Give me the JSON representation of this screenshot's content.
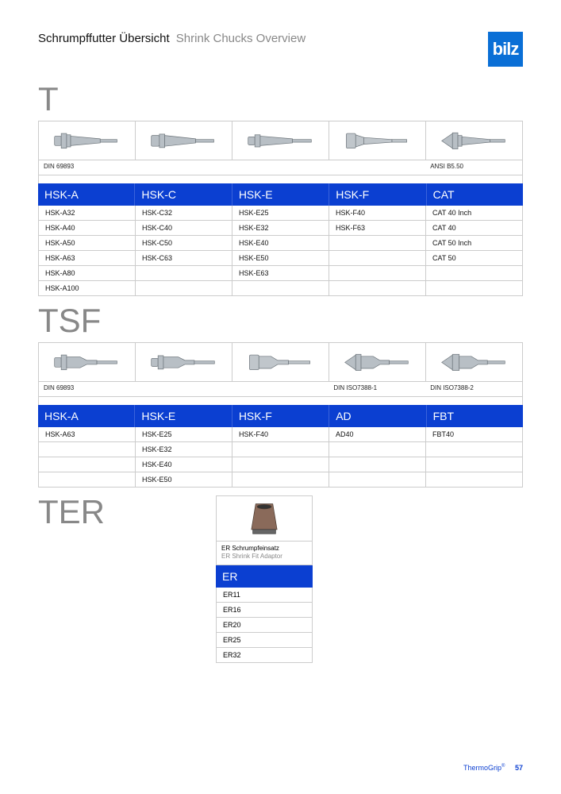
{
  "page": {
    "title_de": "Schrumpffutter Übersicht",
    "title_en": "Shrink Chucks Overview",
    "logo_text": "bilz",
    "footer_brand": "ThermoGrip",
    "page_number": "57"
  },
  "colors": {
    "header_bg": "#0b3fd1",
    "logo_bg": "#0a6fd6",
    "grey_text": "#888888",
    "border": "#cccccc"
  },
  "section_T": {
    "letter": "T",
    "standards": [
      "DIN 69893",
      "",
      "",
      "",
      "ANSI B5.50"
    ],
    "columns": [
      "HSK-A",
      "HSK-C",
      "HSK-E",
      "HSK-F",
      "CAT"
    ],
    "rows": [
      [
        "HSK-A32",
        "HSK-C32",
        "HSK-E25",
        "HSK-F40",
        "CAT 40 Inch"
      ],
      [
        "HSK-A40",
        "HSK-C40",
        "HSK-E32",
        "HSK-F63",
        "CAT 40"
      ],
      [
        "HSK-A50",
        "HSK-C50",
        "HSK-E40",
        "",
        "CAT 50 Inch"
      ],
      [
        "HSK-A63",
        "HSK-C63",
        "HSK-E50",
        "",
        "CAT 50"
      ],
      [
        "HSK-A80",
        "",
        "HSK-E63",
        "",
        ""
      ],
      [
        "HSK-A100",
        "",
        "",
        "",
        ""
      ]
    ]
  },
  "section_TSF": {
    "letter": "TSF",
    "standards": [
      "DIN 69893",
      "",
      "",
      "DIN ISO7388-1",
      "DIN ISO7388-2"
    ],
    "columns": [
      "HSK-A",
      "HSK-E",
      "HSK-F",
      "AD",
      "FBT"
    ],
    "rows": [
      [
        "HSK-A63",
        "HSK-E25",
        "HSK-F40",
        "AD40",
        "FBT40"
      ],
      [
        "",
        "HSK-E32",
        "",
        "",
        ""
      ],
      [
        "",
        "HSK-E40",
        "",
        "",
        ""
      ],
      [
        "",
        "HSK-E50",
        "",
        "",
        ""
      ]
    ]
  },
  "section_TER": {
    "letter": "TER",
    "caption_de": "ER Schrumpfeinsatz",
    "caption_en": "ER Shrink Fit Adaptor",
    "column": "ER",
    "rows": [
      "ER11",
      "ER16",
      "ER20",
      "ER25",
      "ER32"
    ]
  },
  "chuck_shapes": {
    "hsk_fill": "#b8bfc5",
    "hsk_stroke": "#6a7278",
    "taper_fill": "#c0c6cb"
  }
}
